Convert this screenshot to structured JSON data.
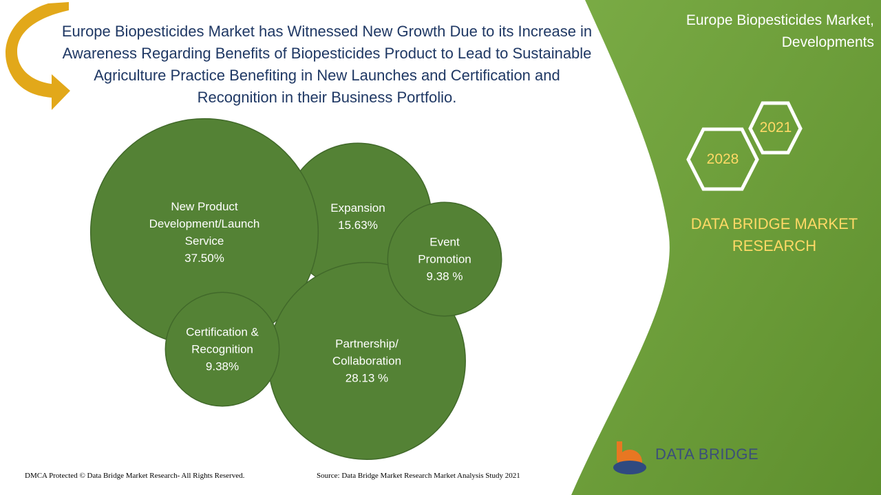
{
  "chart_data": {
    "type": "bubble",
    "title": "Europe  Biopesticides Market has Witnessed New Growth Due to its Increase in Awareness Regarding Benefits of Biopesticides Product to Lead to Sustainable Agriculture Practice Benefiting in New Launches and Certification and Recognition in their Business Portfolio.",
    "categories": [
      "New Product Development/Launch Service",
      "Expansion",
      "Event Promotion",
      "Certification & Recognition",
      "Partnership/ Collaboration"
    ],
    "values": [
      37.5,
      15.63,
      9.38,
      9.38,
      28.13
    ],
    "value_labels": [
      "37.50%",
      "15.63%",
      "9.38 %",
      "9.38%",
      "28.13 %"
    ],
    "color": "#548235"
  },
  "panel": {
    "title": "Europe Biopesticides Market, Developments",
    "years": [
      "2021",
      "2028"
    ],
    "brand": "DATA BRIDGE MARKET RESEARCH",
    "logo": "DATA BRIDGE"
  },
  "footer": {
    "copyright": "DMCA Protected © Data Bridge Market Research- All Rights Reserved.",
    "source": "Source: Data Bridge Market Research Market Analysis Study 2021"
  }
}
